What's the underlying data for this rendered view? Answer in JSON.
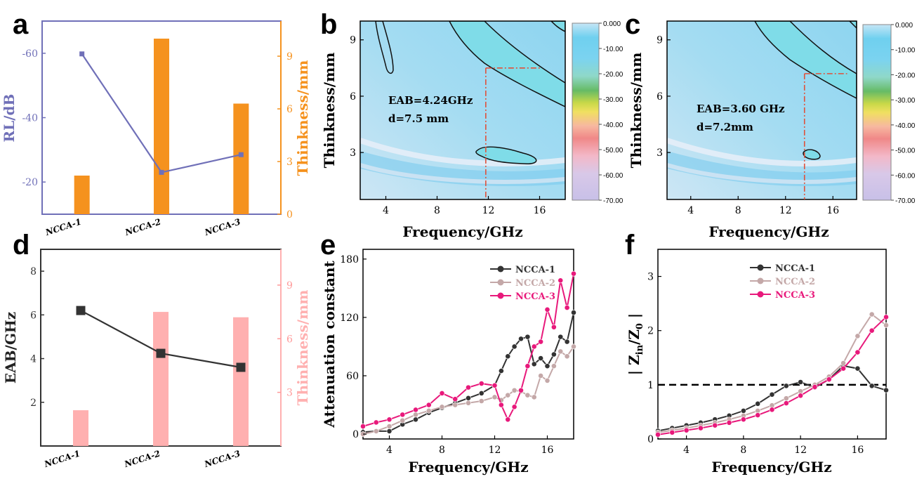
{
  "chart_data": [
    {
      "id": "a",
      "panel_label": "a",
      "type": "bar",
      "categories": [
        "NCCA-1",
        "NCCA-2",
        "NCCA-3"
      ],
      "ylabel": "RL/dB",
      "y2label": "Thinkness/mm",
      "ylim": [
        -10,
        -70
      ],
      "y_ticks": [
        -60,
        -40,
        -20
      ],
      "y2lim": [
        0,
        11
      ],
      "y2_ticks": [
        0,
        3,
        6,
        9
      ],
      "series": [
        {
          "name": "RL",
          "role": "line",
          "axis": "left",
          "color": "#7070b8",
          "values": [
            -59.8,
            -23.0,
            -28.5
          ]
        },
        {
          "name": "Thickness",
          "role": "bar",
          "axis": "right",
          "color": "#f5921e",
          "values": [
            2.2,
            10.0,
            6.3
          ]
        }
      ]
    },
    {
      "id": "b",
      "panel_label": "b",
      "type": "heatmap",
      "xlabel": "Frequency/GHz",
      "ylabel": "Thinkness/mm",
      "xlim": [
        2,
        18
      ],
      "ylim": [
        0.5,
        10
      ],
      "x_ticks": [
        4,
        8,
        12,
        16
      ],
      "y_ticks": [
        3,
        6,
        9
      ],
      "annotation": [
        "EAB=4.24GHz",
        "d=7.5 mm"
      ],
      "eab_range": [
        11.8,
        16.04
      ],
      "eab_thickness": 7.5,
      "colorbar_ticks": [
        "0.000",
        "-10.00",
        "-20.00",
        "-30.00",
        "-40.00",
        "-50.00",
        "-60.00",
        "-70.00"
      ]
    },
    {
      "id": "c",
      "panel_label": "c",
      "type": "heatmap",
      "xlabel": "Frequency/GHz",
      "ylabel": "Thinkness/mm",
      "xlim": [
        2,
        18
      ],
      "ylim": [
        0.5,
        10
      ],
      "x_ticks": [
        4,
        8,
        12,
        16
      ],
      "y_ticks": [
        3,
        6,
        9
      ],
      "annotation": [
        "EAB=3.60 GHz",
        "d=7.2mm"
      ],
      "eab_range": [
        13.6,
        17.2
      ],
      "eab_thickness": 7.2,
      "colorbar_ticks": [
        "0.000",
        "-10.00",
        "-20.00",
        "-30.00",
        "-40.00",
        "-50.00",
        "-60.00",
        "-70.00"
      ]
    },
    {
      "id": "d",
      "panel_label": "d",
      "type": "bar",
      "categories": [
        "NCCA-1",
        "NCCA-2",
        "NCCA-3"
      ],
      "ylabel": "EAB/GHz",
      "y2label": "Thinkness/mm",
      "ylim": [
        0,
        9
      ],
      "y_ticks": [
        2,
        4,
        6,
        8
      ],
      "y2lim": [
        0,
        11
      ],
      "y2_ticks": [
        3,
        6,
        9
      ],
      "series": [
        {
          "name": "EAB",
          "role": "line",
          "axis": "left",
          "color": "#333333",
          "values": [
            6.2,
            4.24,
            3.6
          ]
        },
        {
          "name": "Thickness",
          "role": "bar",
          "axis": "right",
          "color": "#ffb0b0",
          "values": [
            2.0,
            7.5,
            7.2
          ]
        }
      ]
    },
    {
      "id": "e",
      "panel_label": "e",
      "type": "line",
      "xlabel": "Frequency/GHz",
      "ylabel": "Attenuation constant",
      "xlim": [
        2,
        18
      ],
      "ylim": [
        -5,
        190
      ],
      "x_ticks": [
        4,
        8,
        12,
        16
      ],
      "y_ticks": [
        0,
        60,
        120,
        180
      ],
      "legend_position": "top-right",
      "x": [
        2,
        3,
        4,
        5,
        6,
        7,
        8,
        9,
        10,
        11,
        12,
        12.5,
        13,
        13.5,
        14,
        14.5,
        15,
        15.5,
        16,
        16.5,
        17,
        17.5,
        18
      ],
      "series": [
        {
          "name": "NCCA-1",
          "color": "#333333",
          "values": [
            2,
            3,
            3,
            10,
            15,
            22,
            27,
            32,
            37,
            42,
            50,
            65,
            80,
            90,
            98,
            100,
            72,
            78,
            70,
            82,
            100,
            95,
            125
          ]
        },
        {
          "name": "NCCA-2",
          "color": "#c4a8a8",
          "values": [
            0,
            3,
            8,
            14,
            20,
            24,
            28,
            30,
            32,
            34,
            38,
            35,
            40,
            45,
            44,
            40,
            38,
            60,
            55,
            70,
            85,
            80,
            90
          ]
        },
        {
          "name": "NCCA-3",
          "color": "#e8197b",
          "values": [
            8,
            12,
            15,
            20,
            25,
            30,
            42,
            36,
            48,
            52,
            50,
            30,
            15,
            28,
            45,
            70,
            90,
            95,
            128,
            110,
            158,
            130,
            165
          ]
        }
      ]
    },
    {
      "id": "f",
      "panel_label": "f",
      "type": "line",
      "xlabel": "Frequency/GHz",
      "ylabel": "| Z",
      "ylabel_sub1": "in",
      "ylabel_mid": "/Z",
      "ylabel_sub2": "0",
      "ylabel_end": " |",
      "xlim": [
        2,
        18
      ],
      "ylim": [
        0,
        3.5
      ],
      "x_ticks": [
        4,
        8,
        12,
        16
      ],
      "y_ticks": [
        0,
        1,
        2,
        3
      ],
      "legend_position": "top-center",
      "reference_line": 1,
      "x": [
        2,
        3,
        4,
        5,
        6,
        7,
        8,
        9,
        10,
        11,
        12,
        13,
        14,
        15,
        16,
        17,
        18
      ],
      "series": [
        {
          "name": "NCCA-1",
          "color": "#333333",
          "values": [
            0.15,
            0.2,
            0.25,
            0.3,
            0.36,
            0.43,
            0.52,
            0.65,
            0.82,
            0.98,
            1.05,
            0.95,
            1.1,
            1.35,
            1.3,
            0.98,
            0.9
          ]
        },
        {
          "name": "NCCA-2",
          "color": "#c4a8a8",
          "values": [
            0.12,
            0.16,
            0.2,
            0.25,
            0.3,
            0.36,
            0.43,
            0.52,
            0.62,
            0.75,
            0.88,
            1.0,
            1.15,
            1.4,
            1.9,
            2.3,
            2.1
          ]
        },
        {
          "name": "NCCA-3",
          "color": "#e8197b",
          "values": [
            0.08,
            0.12,
            0.16,
            0.2,
            0.25,
            0.3,
            0.36,
            0.44,
            0.54,
            0.66,
            0.8,
            0.96,
            1.1,
            1.3,
            1.6,
            2.0,
            2.25
          ]
        }
      ]
    }
  ]
}
